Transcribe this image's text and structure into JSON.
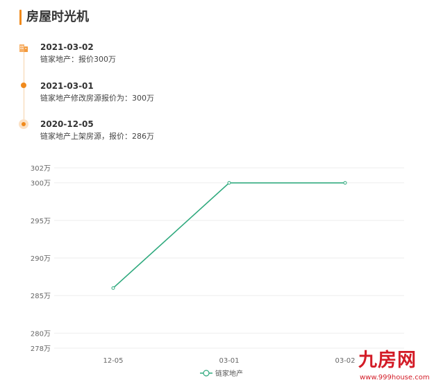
{
  "section": {
    "title": "房屋时光机"
  },
  "timeline": [
    {
      "date": "2021-03-02",
      "desc": "链家地产：报价300万",
      "marker": "building-icon"
    },
    {
      "date": "2021-03-01",
      "desc": "链家地产修改房源报价为：300万",
      "marker": "dot"
    },
    {
      "date": "2020-12-05",
      "desc": "链家地产上架房源，报价：286万",
      "marker": "ring-dot"
    }
  ],
  "chart_data": {
    "type": "line",
    "categories": [
      "12-05",
      "03-01",
      "03-02"
    ],
    "series": [
      {
        "name": "链家地产",
        "values": [
          286,
          300,
          300
        ],
        "color": "#2ea97d"
      }
    ],
    "ylim": [
      278,
      302
    ],
    "yticks": [
      278,
      280,
      285,
      290,
      295,
      300,
      302
    ],
    "y_unit": "万",
    "grid": true,
    "legend": "bottom-center"
  },
  "watermark": {
    "text": "九房网",
    "url": "www.999house.com",
    "color": "#d31c27"
  },
  "colors": {
    "accent": "#f08a1c",
    "line": "#2ea97d"
  }
}
